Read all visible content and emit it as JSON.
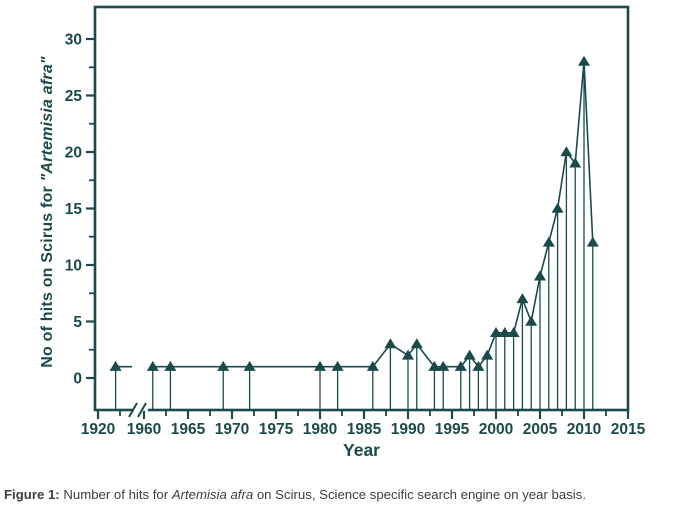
{
  "figure": {
    "caption": {
      "label": "Figure 1:",
      "pre": " Number of hits for ",
      "species": "Artemisia afra",
      "post": " on Scirus, Science specific search engine on year basis."
    }
  },
  "chart_data": {
    "type": "line",
    "title": "",
    "xlabel": "Year",
    "ylabel_regular": "No of hits on Scirus for  ",
    "ylabel_italic": "\"Artemisia afra\"",
    "marker": "triangle-up",
    "stems_to_axis": true,
    "grid": "off",
    "legend": "none",
    "color": "#1b4a4a",
    "x": [
      1922,
      1961,
      1963,
      1969,
      1972,
      1980,
      1982,
      1986,
      1988,
      1990,
      1991,
      1993,
      1994,
      1996,
      1997,
      1998,
      1999,
      2000,
      2001,
      2002,
      2003,
      2004,
      2005,
      2006,
      2007,
      2008,
      2009,
      2010,
      2011
    ],
    "y": [
      1,
      1,
      1,
      1,
      1,
      1,
      1,
      1,
      3,
      2,
      3,
      1,
      1,
      1,
      2,
      1,
      2,
      4,
      4,
      4,
      7,
      5,
      9,
      12,
      15,
      20,
      19,
      28,
      12
    ],
    "axis_break": {
      "axis": "x",
      "gap_years": [
        1924,
        1960
      ]
    },
    "x_major_ticks": [
      1920,
      1960,
      1965,
      1970,
      1975,
      1980,
      1985,
      1990,
      1995,
      2000,
      2005,
      2010,
      2015
    ],
    "x_minor_ticks": [
      1922.5,
      1962.5,
      1967.5,
      1972.5,
      1977.5,
      1982.5,
      1987.5,
      1992.5,
      1997.5,
      2002.5,
      2007.5,
      2012.5
    ],
    "y_major_ticks": [
      0,
      5,
      10,
      15,
      20,
      25,
      30
    ],
    "y_minor_ticks": [
      2.5,
      7.5,
      12.5,
      17.5,
      22.5,
      27.5
    ],
    "ylim": [
      -2.8,
      31.8
    ],
    "xlim": [
      1920,
      2015
    ]
  }
}
